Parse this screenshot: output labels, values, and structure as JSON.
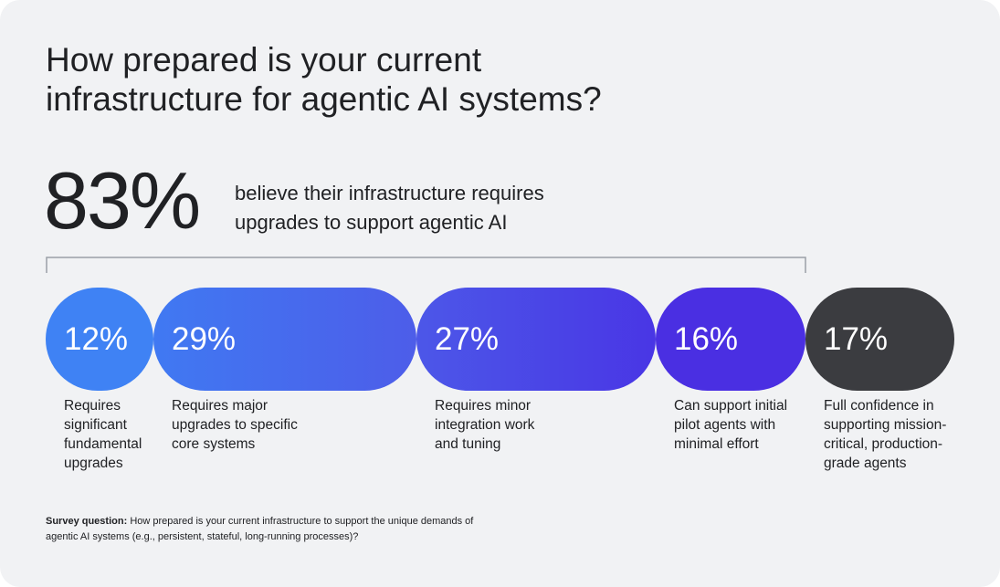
{
  "header": {
    "title_lines": [
      "How prepared is your current",
      "infrastructure for agentic AI systems?"
    ]
  },
  "highlight": {
    "value": "83%",
    "description_lines": [
      "believe their infrastructure requires",
      "upgrades to support agentic AI"
    ]
  },
  "segments": [
    {
      "value": "12%",
      "caption": "Requires significant fundamental upgrades"
    },
    {
      "value": "29%",
      "caption": "Requires major upgrades to specific core systems"
    },
    {
      "value": "27%",
      "caption": "Requires minor integration work and tuning"
    },
    {
      "value": "16%",
      "caption": "Can support initial pilot agents with minimal effort"
    },
    {
      "value": "17%",
      "caption": "Full confidence in supporting mission-critical, production-grade agents"
    }
  ],
  "footnote": {
    "label": "Survey question:",
    "text": "How prepared is your current infrastructure to support the unique demands of agentic AI systems (e.g., persistent, stateful, long-running processes)?"
  }
}
